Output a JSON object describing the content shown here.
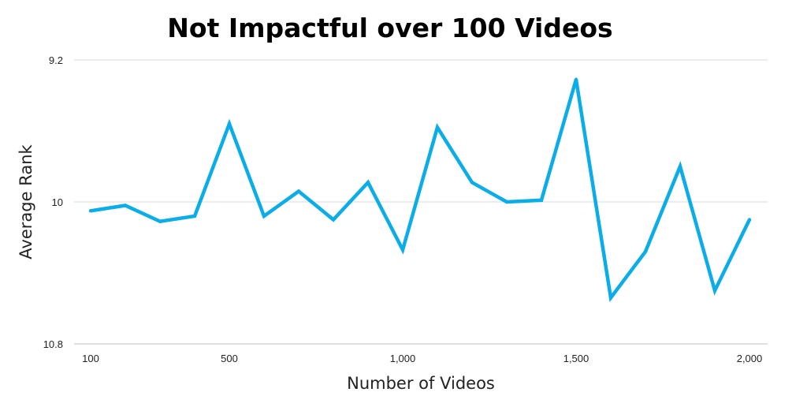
{
  "chart_data": {
    "type": "line",
    "title": "Not Impactful over 100 Videos",
    "xlabel": "Number of Videos",
    "ylabel": "Average Rank",
    "x": [
      100,
      200,
      300,
      400,
      500,
      600,
      700,
      800,
      900,
      1000,
      1100,
      1200,
      1300,
      1400,
      1500,
      1600,
      1700,
      1800,
      1900,
      2000
    ],
    "series": [
      {
        "name": "",
        "values": [
          10.05,
          10.02,
          10.11,
          10.08,
          9.56,
          10.08,
          9.94,
          10.1,
          9.89,
          10.27,
          9.58,
          9.89,
          10.0,
          9.99,
          9.31,
          10.54,
          10.28,
          9.8,
          10.5,
          10.1
        ]
      }
    ],
    "y_ticks": [
      "9.2",
      "10",
      "10.8"
    ],
    "x_ticks": [
      "100",
      "500",
      "1,000",
      "1,500",
      "2,000"
    ],
    "ylim": [
      9.2,
      10.8
    ],
    "y_inverted": true,
    "xlim": [
      100,
      2000
    ],
    "grid": true,
    "line_color": "#0AADE8"
  }
}
